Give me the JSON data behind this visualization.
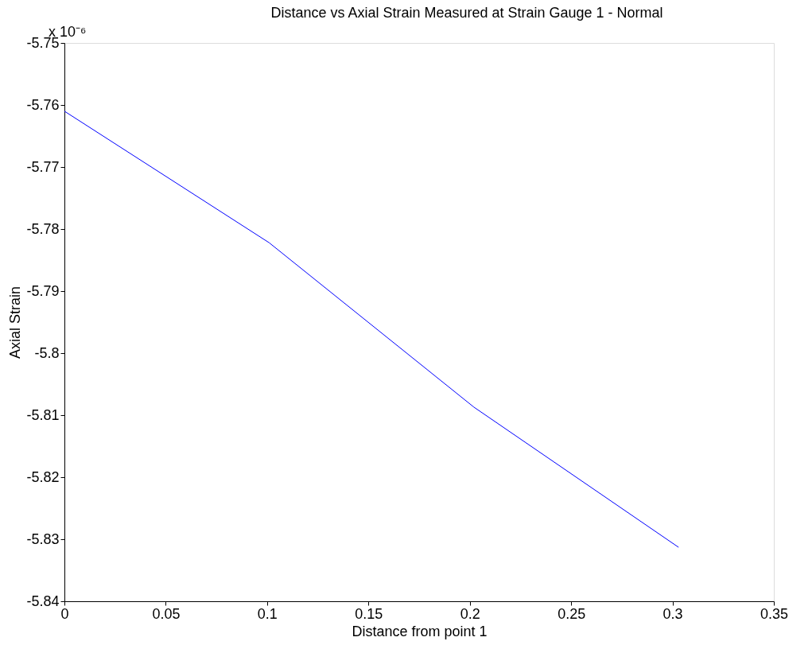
{
  "chart_data": {
    "type": "line",
    "title": "Distance vs Axial Strain Measured at Strain Gauge 1 - Normal",
    "xlabel": "Distance from point 1",
    "ylabel": "Axial Strain",
    "annotations": [
      "x 10⁻⁶"
    ],
    "x": [
      0,
      0.101,
      0.202,
      0.303
    ],
    "series": [
      {
        "color": "#0000ff",
        "values": [
          -5.761,
          -5.7822,
          -5.8087,
          -5.8313
        ]
      }
    ],
    "xlim": [
      0,
      0.35
    ],
    "xticks": [
      0,
      0.05,
      0.1,
      0.15,
      0.2,
      0.25,
      0.3,
      0.35
    ],
    "ylim": [
      -5.84,
      -5.75
    ],
    "yticks": [
      -5.84,
      -5.83,
      -5.82,
      -5.81,
      -5.8,
      -5.79,
      -5.78,
      -5.77,
      -5.76,
      -5.75
    ],
    "grid": false,
    "legend": false,
    "marker": "none",
    "line_style": "solid"
  }
}
